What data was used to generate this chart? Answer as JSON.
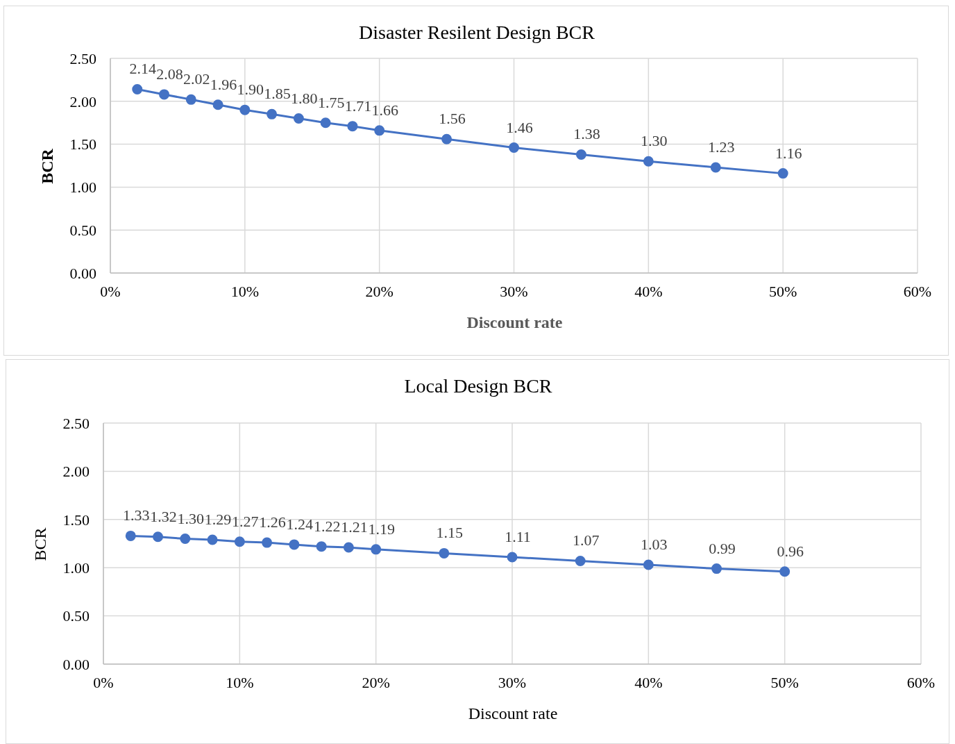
{
  "chart_data": [
    {
      "type": "line",
      "title": "Disaster Resilent Design BCR",
      "xlabel": "Discount rate",
      "ylabel": "BCR",
      "x": [
        2,
        4,
        6,
        8,
        10,
        12,
        14,
        16,
        18,
        20,
        25,
        30,
        35,
        40,
        45,
        50
      ],
      "series": [
        {
          "color": "#4472c4",
          "values": [
            2.14,
            2.08,
            2.02,
            1.96,
            1.9,
            1.85,
            1.8,
            1.75,
            1.71,
            1.66,
            1.56,
            1.46,
            1.38,
            1.3,
            1.23,
            1.16
          ],
          "value_labels": [
            "2.14",
            "2.08",
            "2.02",
            "1.96",
            "1.90",
            "1.85",
            "1.80",
            "1.75",
            "1.71",
            "1.66",
            "1.56",
            "1.46",
            "1.38",
            "1.30",
            "1.23",
            "1.16"
          ]
        }
      ],
      "xlim": [
        0,
        60
      ],
      "xticks": [
        {
          "value": 0,
          "label": "0%"
        },
        {
          "value": 10,
          "label": "10%"
        },
        {
          "value": 20,
          "label": "20%"
        },
        {
          "value": 30,
          "label": "30%"
        },
        {
          "value": 40,
          "label": "40%"
        },
        {
          "value": 50,
          "label": "50%"
        },
        {
          "value": 60,
          "label": "60%"
        }
      ],
      "ylim": [
        0,
        2.5
      ],
      "yticks": [
        {
          "value": 0,
          "label": "0.00"
        },
        {
          "value": 0.5,
          "label": "0.50"
        },
        {
          "value": 1,
          "label": "1.00"
        },
        {
          "value": 1.5,
          "label": "1.50"
        },
        {
          "value": 2,
          "label": "2.00"
        },
        {
          "value": 2.5,
          "label": "2.50"
        }
      ],
      "grid": true,
      "marker": "circle",
      "legend": false
    },
    {
      "type": "line",
      "title": "Local Design BCR",
      "xlabel": "Discount rate",
      "ylabel": "BCR",
      "x": [
        2,
        4,
        6,
        8,
        10,
        12,
        14,
        16,
        18,
        20,
        25,
        30,
        35,
        40,
        45,
        50
      ],
      "series": [
        {
          "color": "#4472c4",
          "values": [
            1.33,
            1.32,
            1.3,
            1.29,
            1.27,
            1.26,
            1.24,
            1.22,
            1.21,
            1.19,
            1.15,
            1.11,
            1.07,
            1.03,
            0.99,
            0.96
          ],
          "value_labels": [
            "1.33",
            "1.32",
            "1.30",
            "1.29",
            "1.27",
            "1.26",
            "1.24",
            "1.22",
            "1.21",
            "1.19",
            "1.15",
            "1.11",
            "1.07",
            "1.03",
            "0.99",
            "0.96"
          ]
        }
      ],
      "xlim": [
        0,
        60
      ],
      "xticks": [
        {
          "value": 0,
          "label": "0%"
        },
        {
          "value": 10,
          "label": "10%"
        },
        {
          "value": 20,
          "label": "20%"
        },
        {
          "value": 30,
          "label": "30%"
        },
        {
          "value": 40,
          "label": "40%"
        },
        {
          "value": 50,
          "label": "50%"
        },
        {
          "value": 60,
          "label": "60%"
        }
      ],
      "ylim": [
        0,
        2.5
      ],
      "yticks": [
        {
          "value": 0,
          "label": "0.00"
        },
        {
          "value": 0.5,
          "label": "0.50"
        },
        {
          "value": 1,
          "label": "1.00"
        },
        {
          "value": 1.5,
          "label": "1.50"
        },
        {
          "value": 2,
          "label": "2.00"
        },
        {
          "value": 2.5,
          "label": "2.50"
        }
      ],
      "grid": true,
      "marker": "circle",
      "legend": false
    }
  ]
}
